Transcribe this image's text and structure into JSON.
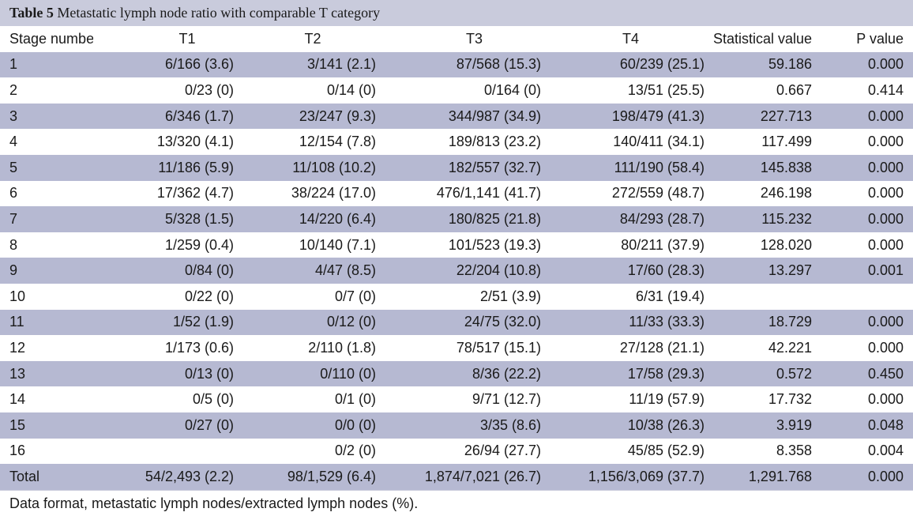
{
  "caption": {
    "label": "Table 5",
    "title": "Metastatic lymph node ratio with comparable T category"
  },
  "columns": [
    "Stage number",
    "T1",
    "T2",
    "T3",
    "T4",
    "Statistical value",
    "P value"
  ],
  "rows": [
    [
      "1",
      "6/166 (3.6)",
      "3/141 (2.1)",
      "87/568 (15.3)",
      "60/239 (25.1)",
      "59.186",
      "0.000"
    ],
    [
      "2",
      "0/23 (0)",
      "0/14 (0)",
      "0/164 (0)",
      "13/51 (25.5)",
      "0.667",
      "0.414"
    ],
    [
      "3",
      "6/346 (1.7)",
      "23/247 (9.3)",
      "344/987 (34.9)",
      "198/479 (41.3)",
      "227.713",
      "0.000"
    ],
    [
      "4",
      "13/320 (4.1)",
      "12/154 (7.8)",
      "189/813 (23.2)",
      "140/411 (34.1)",
      "117.499",
      "0.000"
    ],
    [
      "5",
      "11/186 (5.9)",
      "11/108 (10.2)",
      "182/557 (32.7)",
      "111/190 (58.4)",
      "145.838",
      "0.000"
    ],
    [
      "6",
      "17/362 (4.7)",
      "38/224 (17.0)",
      "476/1,141 (41.7)",
      "272/559 (48.7)",
      "246.198",
      "0.000"
    ],
    [
      "7",
      "5/328 (1.5)",
      "14/220 (6.4)",
      "180/825 (21.8)",
      "84/293 (28.7)",
      "115.232",
      "0.000"
    ],
    [
      "8",
      "1/259 (0.4)",
      "10/140 (7.1)",
      "101/523 (19.3)",
      "80/211 (37.9)",
      "128.020",
      "0.000"
    ],
    [
      "9",
      "0/84 (0)",
      "4/47 (8.5)",
      "22/204 (10.8)",
      "17/60 (28.3)",
      "13.297",
      "0.001"
    ],
    [
      "10",
      "0/22 (0)",
      "0/7 (0)",
      "2/51 (3.9)",
      "6/31 (19.4)",
      "",
      ""
    ],
    [
      "11",
      "1/52 (1.9)",
      "0/12 (0)",
      "24/75 (32.0)",
      "11/33 (33.3)",
      "18.729",
      "0.000"
    ],
    [
      "12",
      "1/173 (0.6)",
      "2/110 (1.8)",
      "78/517 (15.1)",
      "27/128 (21.1)",
      "42.221",
      "0.000"
    ],
    [
      "13",
      "0/13 (0)",
      "0/110 (0)",
      "8/36 (22.2)",
      "17/58 (29.3)",
      "0.572",
      "0.450"
    ],
    [
      "14",
      "0/5 (0)",
      "0/1 (0)",
      "9/71 (12.7)",
      "11/19 (57.9)",
      "17.732",
      "0.000"
    ],
    [
      "15",
      "0/27 (0)",
      "0/0 (0)",
      "3/35 (8.6)",
      "10/38 (26.3)",
      "3.919",
      "0.048"
    ],
    [
      "16",
      "",
      "0/2 (0)",
      "26/94 (27.7)",
      "45/85 (52.9)",
      "8.358",
      "0.004"
    ],
    [
      "Total",
      "54/2,493 (2.2)",
      "98/1,529 (6.4)",
      "1,874/7,021 (26.7)",
      "1,156/3,069 (37.7)",
      "1,291.768",
      "0.000"
    ]
  ],
  "footnote": "Data format, metastatic lymph nodes/extracted lymph nodes (%).",
  "colors": {
    "caption_bg": "#c9cbdc",
    "stripe_bg": "#b6b9d2",
    "plain_bg": "#ffffff"
  }
}
